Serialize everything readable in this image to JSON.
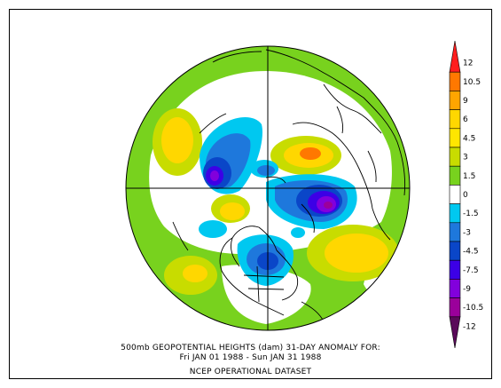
{
  "caption": {
    "line1": "500mb GEOPOTENTIAL HEIGHTS (dam)    31-DAY ANOMALY FOR:",
    "line2": "Fri JAN 01 1988 - Sun JAN 31 1988",
    "line3": "NCEP OPERATIONAL DATASET"
  },
  "legend": {
    "labels": [
      "12",
      "10.5",
      "9",
      "6",
      "4.5",
      "3",
      "1.5",
      "0",
      "-1.5",
      "-3",
      "-4.5",
      "-7.5",
      "-9",
      "-10.5",
      "-12"
    ],
    "colors": [
      "#ff1e1e",
      "#ff7800",
      "#ffa500",
      "#ffd700",
      "#ffe600",
      "#c8dc00",
      "#78d21e",
      "#ffffff",
      "#00c8f0",
      "#1e78dc",
      "#0a46c8",
      "#3c00e6",
      "#8200dc",
      "#9b009b",
      "#5a0a5a"
    ]
  }
}
